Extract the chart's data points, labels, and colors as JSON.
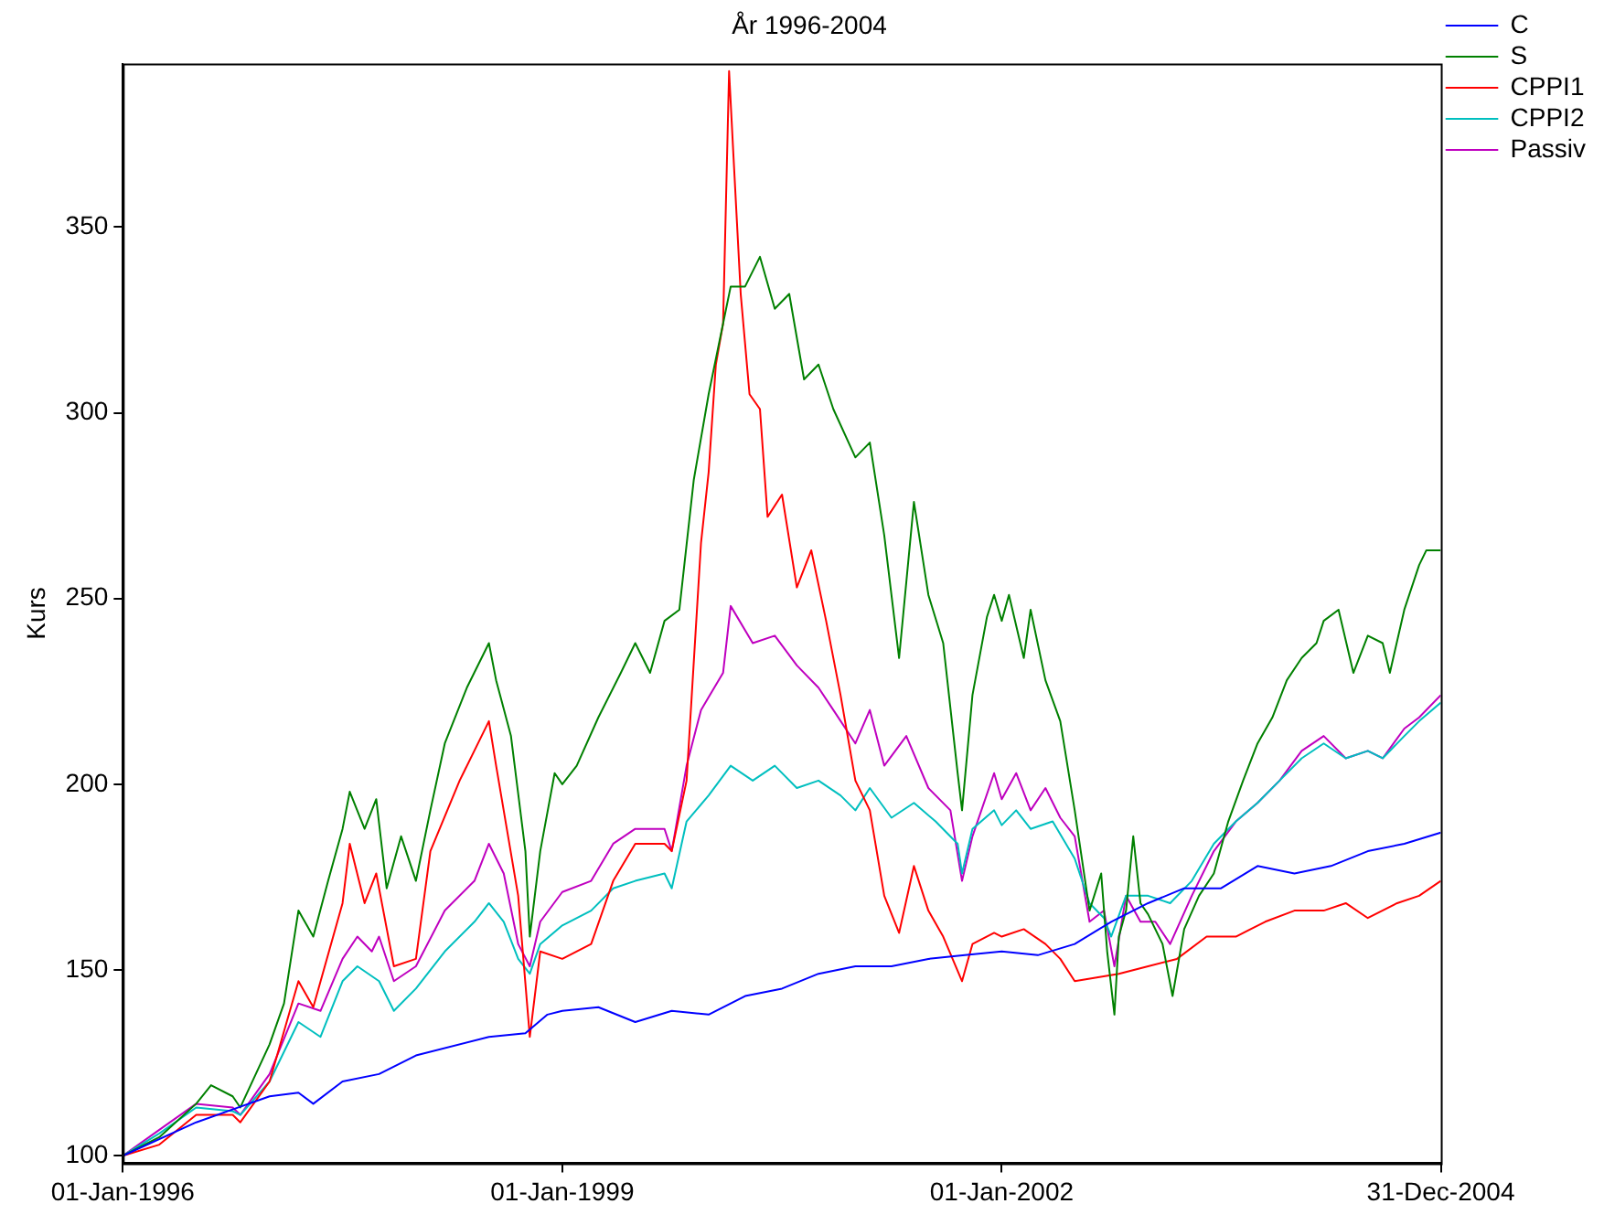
{
  "chart_data": {
    "type": "line",
    "title": "År 1996-2004",
    "ylabel": "Kurs",
    "xlim": [
      "1996-01-01",
      "2004-12-31"
    ],
    "ylim": [
      98,
      394
    ],
    "xticks": [
      {
        "value": "1996-01-01",
        "label": "01-Jan-1996"
      },
      {
        "value": "1999-01-01",
        "label": "01-Jan-1999"
      },
      {
        "value": "2002-01-01",
        "label": "01-Jan-2002"
      },
      {
        "value": "2004-12-31",
        "label": "31-Dec-2004"
      }
    ],
    "yticks": [
      100,
      150,
      200,
      250,
      300,
      350
    ],
    "grid": false,
    "legend": "top right",
    "marker": "none",
    "line_style": "solid",
    "series": [
      {
        "name": "C",
        "color": "#0000ff",
        "x": [
          "1996-01-01",
          "1996-07-02",
          "1997-01-01",
          "1997-03-14",
          "1997-04-20",
          "1997-07-02",
          "1997-10-01",
          "1998-01-01",
          "1998-07-02",
          "1998-10-01",
          "1998-11-25",
          "1999-01-01",
          "1999-04-01",
          "1999-07-02",
          "1999-10-01",
          "2000-01-01",
          "2000-04-01",
          "2000-07-02",
          "2000-10-01",
          "2001-01-01",
          "2001-04-01",
          "2001-07-02",
          "2001-10-01",
          "2002-01-01",
          "2002-04-01",
          "2002-07-02",
          "2002-10-01",
          "2003-01-01",
          "2003-04-01",
          "2003-07-02",
          "2003-10-01",
          "2004-01-01",
          "2004-04-01",
          "2004-07-02",
          "2004-10-01",
          "2004-12-31"
        ],
        "values": [
          100,
          109,
          116,
          117,
          114,
          120,
          122,
          127,
          132,
          133,
          138,
          139,
          140,
          136,
          139,
          138,
          143,
          145,
          149,
          151,
          151,
          153,
          154,
          155,
          154,
          157,
          163,
          168,
          172,
          172,
          178,
          176,
          178,
          182,
          184,
          187
        ]
      },
      {
        "name": "S",
        "color": "#008000",
        "x": [
          "1996-01-01",
          "1996-04-01",
          "1996-07-02",
          "1996-08-08",
          "1996-10-01",
          "1996-10-20",
          "1997-01-01",
          "1997-02-06",
          "1997-03-14",
          "1997-04-20",
          "1997-05-27",
          "1997-07-02",
          "1997-07-20",
          "1997-08-26",
          "1997-09-24",
          "1997-10-20",
          "1997-11-25",
          "1998-01-01",
          "1998-02-06",
          "1998-03-14",
          "1998-05-08",
          "1998-07-02",
          "1998-07-20",
          "1998-08-26",
          "1998-10-01",
          "1998-10-12",
          "1998-11-07",
          "1998-12-13",
          "1999-01-01",
          "1999-02-06",
          "1999-04-01",
          "1999-05-27",
          "1999-07-02",
          "1999-08-08",
          "1999-09-13",
          "1999-10-20",
          "1999-11-25",
          "2000-01-01",
          "2000-02-06",
          "2000-02-25",
          "2000-04-01",
          "2000-05-08",
          "2000-06-14",
          "2000-07-20",
          "2000-08-26",
          "2000-10-01",
          "2000-11-07",
          "2001-01-01",
          "2001-02-06",
          "2001-03-14",
          "2001-04-20",
          "2001-05-27",
          "2001-07-02",
          "2001-08-08",
          "2001-09-13",
          "2001-09-24",
          "2001-10-20",
          "2001-11-25",
          "2001-12-13",
          "2002-01-01",
          "2002-01-19",
          "2002-02-25",
          "2002-03-14",
          "2002-04-20",
          "2002-05-27",
          "2002-07-02",
          "2002-08-08",
          "2002-09-06",
          "2002-09-21",
          "2002-10-09",
          "2002-10-20",
          "2002-11-07",
          "2002-11-25",
          "2002-12-13",
          "2003-01-01",
          "2003-02-06",
          "2003-03-03",
          "2003-04-01",
          "2003-05-08",
          "2003-06-14",
          "2003-07-20",
          "2003-08-26",
          "2003-10-01",
          "2003-11-07",
          "2003-12-13",
          "2004-01-19",
          "2004-02-25",
          "2004-03-14",
          "2004-04-20",
          "2004-05-27",
          "2004-07-02",
          "2004-08-08",
          "2004-08-26",
          "2004-10-01",
          "2004-11-07",
          "2004-11-25",
          "2004-12-31"
        ],
        "values": [
          100,
          105,
          114,
          119,
          116,
          113,
          130,
          141,
          166,
          159,
          174,
          188,
          198,
          188,
          196,
          172,
          186,
          174,
          193,
          211,
          226,
          238,
          228,
          213,
          182,
          159,
          182,
          203,
          200,
          205,
          218,
          230,
          238,
          230,
          244,
          247,
          282,
          305,
          324,
          334,
          334,
          342,
          328,
          332,
          309,
          313,
          301,
          288,
          292,
          267,
          234,
          276,
          251,
          238,
          203,
          193,
          224,
          245,
          251,
          244,
          251,
          234,
          247,
          228,
          217,
          193,
          166,
          176,
          155,
          138,
          159,
          166,
          186,
          168,
          165,
          157,
          143,
          161,
          170,
          176,
          190,
          201,
          211,
          218,
          228,
          234,
          238,
          244,
          247,
          230,
          240,
          238,
          230,
          247,
          259,
          263,
          263
        ]
      },
      {
        "name": "CPPI1",
        "color": "#ff0000",
        "x": [
          "1996-01-01",
          "1996-04-01",
          "1996-07-02",
          "1996-10-01",
          "1996-10-20",
          "1997-01-01",
          "1997-03-14",
          "1997-04-20",
          "1997-07-02",
          "1997-07-20",
          "1997-08-26",
          "1997-09-24",
          "1997-11-07",
          "1998-01-01",
          "1998-02-06",
          "1998-04-20",
          "1998-07-02",
          "1998-07-20",
          "1998-09-13",
          "1998-10-12",
          "1998-11-07",
          "1999-01-01",
          "1999-03-14",
          "1999-05-08",
          "1999-07-02",
          "1999-09-13",
          "1999-10-01",
          "1999-11-07",
          "1999-12-13",
          "2000-01-01",
          "2000-01-19",
          "2000-02-06",
          "2000-02-21",
          "2000-03-03",
          "2000-03-21",
          "2000-04-12",
          "2000-05-08",
          "2000-05-27",
          "2000-07-02",
          "2000-08-08",
          "2000-09-13",
          "2000-10-20",
          "2000-11-25",
          "2001-01-01",
          "2001-02-06",
          "2001-03-14",
          "2001-04-20",
          "2001-05-27",
          "2001-07-02",
          "2001-08-08",
          "2001-09-24",
          "2001-10-20",
          "2001-12-13",
          "2002-01-01",
          "2002-02-25",
          "2002-04-20",
          "2002-05-27",
          "2002-07-02",
          "2002-08-26",
          "2002-10-20",
          "2003-01-01",
          "2003-03-14",
          "2003-05-27",
          "2003-08-08",
          "2003-10-20",
          "2004-01-01",
          "2004-03-14",
          "2004-05-08",
          "2004-07-02",
          "2004-09-13",
          "2004-11-07",
          "2004-12-31"
        ],
        "values": [
          100,
          103,
          111,
          111,
          109,
          120,
          147,
          140,
          168,
          184,
          168,
          176,
          151,
          153,
          182,
          201,
          217,
          205,
          170,
          132,
          155,
          153,
          157,
          174,
          184,
          184,
          182,
          201,
          265,
          284,
          313,
          324,
          392,
          369,
          332,
          305,
          301,
          272,
          278,
          253,
          263,
          244,
          224,
          201,
          193,
          170,
          160,
          178,
          166,
          159,
          147,
          157,
          160,
          159,
          161,
          157,
          153,
          147,
          148,
          149,
          151,
          153,
          159,
          159,
          163,
          166,
          166,
          168,
          164,
          168,
          170,
          174
        ]
      },
      {
        "name": "CPPI2",
        "color": "#00bfbf",
        "x": [
          "1996-01-01",
          "1996-04-01",
          "1996-07-02",
          "1996-10-01",
          "1996-10-20",
          "1997-01-01",
          "1997-03-14",
          "1997-05-08",
          "1997-07-02",
          "1997-08-08",
          "1997-10-01",
          "1997-11-07",
          "1998-01-01",
          "1998-03-14",
          "1998-05-27",
          "1998-07-02",
          "1998-08-08",
          "1998-09-13",
          "1998-10-12",
          "1998-11-07",
          "1999-01-01",
          "1999-03-14",
          "1999-05-08",
          "1999-07-02",
          "1999-09-13",
          "1999-10-01",
          "1999-11-07",
          "2000-01-01",
          "2000-02-25",
          "2000-04-20",
          "2000-06-14",
          "2000-08-08",
          "2000-10-01",
          "2000-11-25",
          "2001-01-01",
          "2001-02-06",
          "2001-04-01",
          "2001-05-27",
          "2001-07-20",
          "2001-09-13",
          "2001-09-24",
          "2001-10-20",
          "2001-12-13",
          "2002-01-01",
          "2002-02-06",
          "2002-03-14",
          "2002-05-08",
          "2002-07-02",
          "2002-08-08",
          "2002-09-13",
          "2002-10-01",
          "2002-11-07",
          "2003-01-01",
          "2003-02-25",
          "2003-04-20",
          "2003-06-14",
          "2003-08-08",
          "2003-10-01",
          "2003-11-25",
          "2004-01-19",
          "2004-03-14",
          "2004-05-08",
          "2004-07-02",
          "2004-08-08",
          "2004-10-01",
          "2004-11-07",
          "2004-12-31"
        ],
        "values": [
          100,
          106,
          113,
          112,
          111,
          120,
          136,
          132,
          147,
          151,
          147,
          139,
          145,
          155,
          163,
          168,
          163,
          153,
          149,
          157,
          162,
          166,
          172,
          174,
          176,
          172,
          190,
          197,
          205,
          201,
          205,
          199,
          201,
          197,
          193,
          199,
          191,
          195,
          190,
          184,
          176,
          188,
          193,
          189,
          193,
          188,
          190,
          180,
          168,
          164,
          159,
          170,
          170,
          168,
          174,
          184,
          190,
          195,
          201,
          207,
          211,
          207,
          209,
          207,
          213,
          217,
          222
        ]
      },
      {
        "name": "Passiv",
        "color": "#bf00bf",
        "x": [
          "1996-01-01",
          "1996-04-01",
          "1996-07-02",
          "1996-10-01",
          "1996-10-20",
          "1997-01-01",
          "1997-03-14",
          "1997-05-08",
          "1997-07-02",
          "1997-08-08",
          "1997-09-13",
          "1997-10-01",
          "1997-11-07",
          "1998-01-01",
          "1998-03-14",
          "1998-05-27",
          "1998-07-02",
          "1998-08-08",
          "1998-09-13",
          "1998-10-12",
          "1998-11-07",
          "1999-01-01",
          "1999-03-14",
          "1999-05-08",
          "1999-07-02",
          "1999-09-13",
          "1999-10-01",
          "1999-11-07",
          "1999-12-13",
          "2000-02-06",
          "2000-02-25",
          "2000-04-20",
          "2000-06-14",
          "2000-08-08",
          "2000-10-01",
          "2000-11-07",
          "2001-01-01",
          "2001-02-06",
          "2001-03-14",
          "2001-05-08",
          "2001-07-02",
          "2001-08-26",
          "2001-09-24",
          "2001-10-20",
          "2001-12-13",
          "2002-01-01",
          "2002-02-06",
          "2002-03-14",
          "2002-04-20",
          "2002-05-27",
          "2002-07-02",
          "2002-08-08",
          "2002-09-13",
          "2002-10-09",
          "2002-11-07",
          "2002-12-13",
          "2003-01-19",
          "2003-02-25",
          "2003-04-20",
          "2003-06-14",
          "2003-08-08",
          "2003-10-01",
          "2003-11-25",
          "2004-01-19",
          "2004-03-14",
          "2004-05-08",
          "2004-07-02",
          "2004-08-08",
          "2004-10-01",
          "2004-11-07",
          "2004-12-31"
        ],
        "values": [
          100,
          107,
          114,
          113,
          111,
          122,
          141,
          139,
          153,
          159,
          155,
          159,
          147,
          151,
          166,
          174,
          184,
          176,
          157,
          151,
          163,
          171,
          174,
          184,
          188,
          188,
          182,
          205,
          220,
          230,
          248,
          238,
          240,
          232,
          226,
          220,
          211,
          220,
          205,
          213,
          199,
          193,
          174,
          186,
          203,
          196,
          203,
          193,
          199,
          191,
          186,
          163,
          166,
          151,
          170,
          163,
          163,
          157,
          170,
          182,
          190,
          195,
          201,
          209,
          213,
          207,
          209,
          207,
          215,
          218,
          224
        ]
      }
    ]
  }
}
